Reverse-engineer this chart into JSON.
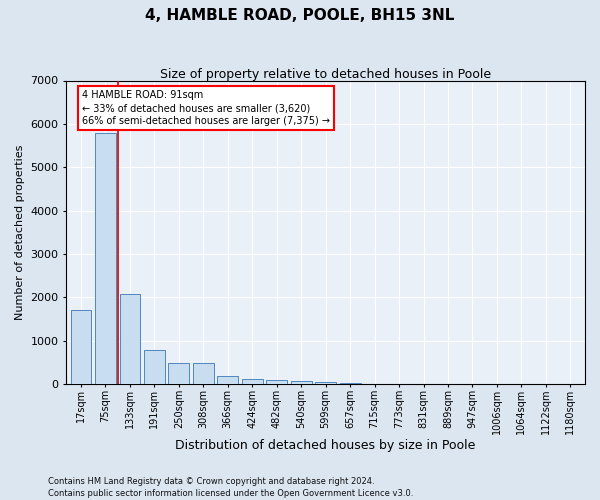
{
  "title1": "4, HAMBLE ROAD, POOLE, BH15 3NL",
  "title2": "Size of property relative to detached houses in Poole",
  "xlabel": "Distribution of detached houses by size in Poole",
  "ylabel": "Number of detached properties",
  "categories": [
    "17sqm",
    "75sqm",
    "133sqm",
    "191sqm",
    "250sqm",
    "308sqm",
    "366sqm",
    "424sqm",
    "482sqm",
    "540sqm",
    "599sqm",
    "657sqm",
    "715sqm",
    "773sqm",
    "831sqm",
    "889sqm",
    "947sqm",
    "1006sqm",
    "1064sqm",
    "1122sqm",
    "1180sqm"
  ],
  "values": [
    1720,
    5800,
    2070,
    780,
    490,
    490,
    200,
    130,
    110,
    80,
    55,
    25,
    5,
    0,
    0,
    0,
    0,
    0,
    0,
    0,
    0
  ],
  "bar_color": "#c9ddf0",
  "bar_edge_color": "#4f86c0",
  "vline_color": "#cc0000",
  "vline_x": 1.5,
  "annotation_line1": "4 HAMBLE ROAD: 91sqm",
  "annotation_line2": "← 33% of detached houses are smaller (3,620)",
  "annotation_line3": "66% of semi-detached houses are larger (7,375) →",
  "ylim": [
    0,
    7000
  ],
  "yticks": [
    0,
    1000,
    2000,
    3000,
    4000,
    5000,
    6000,
    7000
  ],
  "footer1": "Contains HM Land Registry data © Crown copyright and database right 2024.",
  "footer2": "Contains public sector information licensed under the Open Government Licence v3.0.",
  "outer_bg": "#dce6f1",
  "plot_bg": "#eaf0f8",
  "grid_color": "#ffffff",
  "title1_fontsize": 11,
  "title2_fontsize": 9,
  "xlabel_fontsize": 9,
  "ylabel_fontsize": 8,
  "tick_fontsize": 7,
  "ytick_fontsize": 8,
  "ann_fontsize": 7,
  "footer_fontsize": 6
}
